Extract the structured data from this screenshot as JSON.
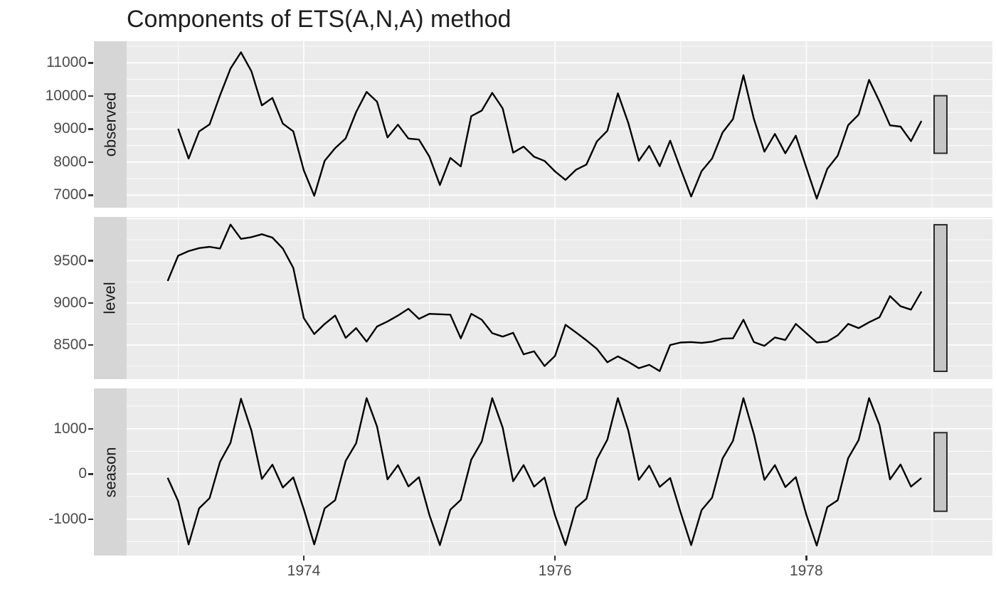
{
  "title": "Components of ETS(A,N,A) method",
  "x_axis": {
    "tick_labels": [
      "1974",
      "1976",
      "1978"
    ],
    "tick_years": [
      1974,
      1976,
      1978
    ],
    "minor_years": [
      1973,
      1975,
      1977,
      1979
    ]
  },
  "chart_data": {
    "type": "line",
    "title": "Components of ETS(A,N,A) method",
    "frequency": "monthly",
    "line_color": "#000000",
    "panel_background": "#ebebeb",
    "strip_background": "#d6d6d6",
    "scale_bar_fill": "#c6c6c6",
    "scale_bar_border": "#2b2b2b",
    "facets": [
      {
        "strip_label": "observed",
        "y_ticks": [
          7000,
          8000,
          9000,
          10000,
          11000
        ],
        "y_tick_labels": [
          "7000",
          "8000",
          "9000",
          "10000",
          "11000"
        ],
        "y_minor": [
          7500,
          8500,
          9500,
          10500,
          11500
        ],
        "y_major_extra": [],
        "ylim": [
          6620,
          11651
        ],
        "start_year": 1973,
        "start_month": 1,
        "values": [
          9007,
          8106,
          8928,
          9137,
          10017,
          10826,
          11317,
          10744,
          9713,
          9938,
          9161,
          8927,
          7750,
          6981,
          8038,
          8422,
          8714,
          9512,
          10120,
          9823,
          8743,
          9129,
          8710,
          8680,
          8162,
          7306,
          8124,
          7870,
          9387,
          9556,
          10093,
          9620,
          8285,
          8466,
          8160,
          8034,
          7717,
          7461,
          7767,
          7925,
          8623,
          8945,
          10078,
          9179,
          8037,
          8488,
          7874,
          8647,
          7792,
          6957,
          7726,
          8106,
          8890,
          9299,
          10625,
          9302,
          8314,
          8850,
          8265,
          8796,
          7836,
          6892,
          7791,
          8192,
          9115,
          9434,
          10484,
          9827,
          9110,
          9070,
          8633,
          9240
        ]
      },
      {
        "strip_label": "level",
        "y_ticks": [
          8500,
          9000,
          9500
        ],
        "y_tick_labels": [
          "8500",
          "9000",
          "9500"
        ],
        "y_minor": [
          8250,
          8750,
          9250,
          9750
        ],
        "y_major_extra": [
          10000
        ],
        "ylim": [
          8095,
          10020
        ],
        "start_year": 1972,
        "start_month": 12,
        "values": [
          9260,
          9560,
          9615,
          9650,
          9665,
          9645,
          9930,
          9760,
          9780,
          9815,
          9775,
          9645,
          9415,
          8820,
          8630,
          8750,
          8850,
          8585,
          8700,
          8540,
          8720,
          8780,
          8850,
          8930,
          8810,
          8870,
          8865,
          8860,
          8580,
          8870,
          8800,
          8640,
          8600,
          8645,
          8390,
          8425,
          8250,
          8370,
          8740,
          8650,
          8555,
          8455,
          8295,
          8365,
          8300,
          8225,
          8265,
          8190,
          8500,
          8530,
          8535,
          8525,
          8540,
          8575,
          8580,
          8800,
          8535,
          8490,
          8590,
          8560,
          8750,
          8640,
          8530,
          8540,
          8615,
          8750,
          8700,
          8770,
          8830,
          9080,
          8960,
          8920,
          9135
        ]
      },
      {
        "strip_label": "season",
        "y_ticks": [
          -1000,
          0,
          1000
        ],
        "y_tick_labels": [
          "-1000",
          "0",
          "1000"
        ],
        "y_minor": [
          -1500,
          -500,
          500,
          1500
        ],
        "y_major_extra": [],
        "ylim": [
          -1806,
          1895
        ],
        "start_year": 1972,
        "start_month": 12,
        "values": [
          -85,
          -600,
          -1560,
          -760,
          -535,
          270,
          690,
          1665,
          960,
          -110,
          205,
          -300,
          -75,
          -780,
          -1560,
          -760,
          -580,
          290,
          680,
          1680,
          1050,
          -120,
          195,
          -275,
          -70,
          -910,
          -1575,
          -790,
          -575,
          315,
          720,
          1680,
          1025,
          -160,
          195,
          -280,
          -80,
          -920,
          -1575,
          -750,
          -550,
          330,
          760,
          1680,
          960,
          -130,
          185,
          -285,
          -90,
          -850,
          -1575,
          -800,
          -525,
          340,
          735,
          1680,
          880,
          -130,
          195,
          -290,
          -70,
          -895,
          -1585,
          -735,
          -580,
          350,
          750,
          1680,
          1080,
          -120,
          210,
          -280,
          -90
        ]
      }
    ]
  }
}
